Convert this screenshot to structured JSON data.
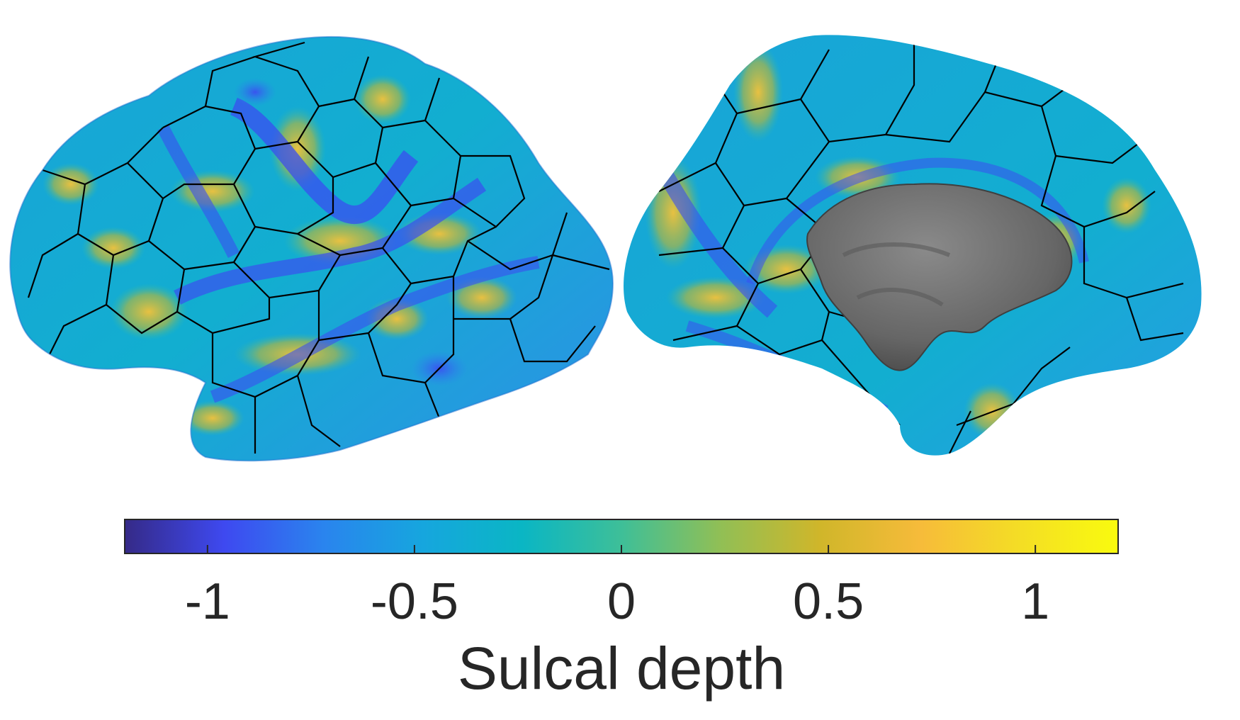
{
  "colorbar": {
    "label": "Sulcal depth",
    "range": [
      -1.2,
      1.2
    ],
    "ticks": [
      -1,
      -0.5,
      0,
      0.5,
      1
    ],
    "tick_labels": [
      "-1",
      "-0.5",
      "0",
      "0.5",
      "1"
    ],
    "colormap": [
      "#352a87",
      "#3e49f0",
      "#2a84ee",
      "#16a6de",
      "#0ab6c4",
      "#3ebf98",
      "#91bf55",
      "#d0b62a",
      "#f6bb3a",
      "#f4dd25",
      "#f9fb0e"
    ]
  },
  "views": [
    {
      "name": "lateral view",
      "surface": "left hemisphere lateral"
    },
    {
      "name": "medial view",
      "surface": "left hemisphere medial"
    }
  ],
  "colors": {
    "parcel_border": "#000000",
    "medial_wall": "#6b6b6b",
    "text": "#262626"
  }
}
